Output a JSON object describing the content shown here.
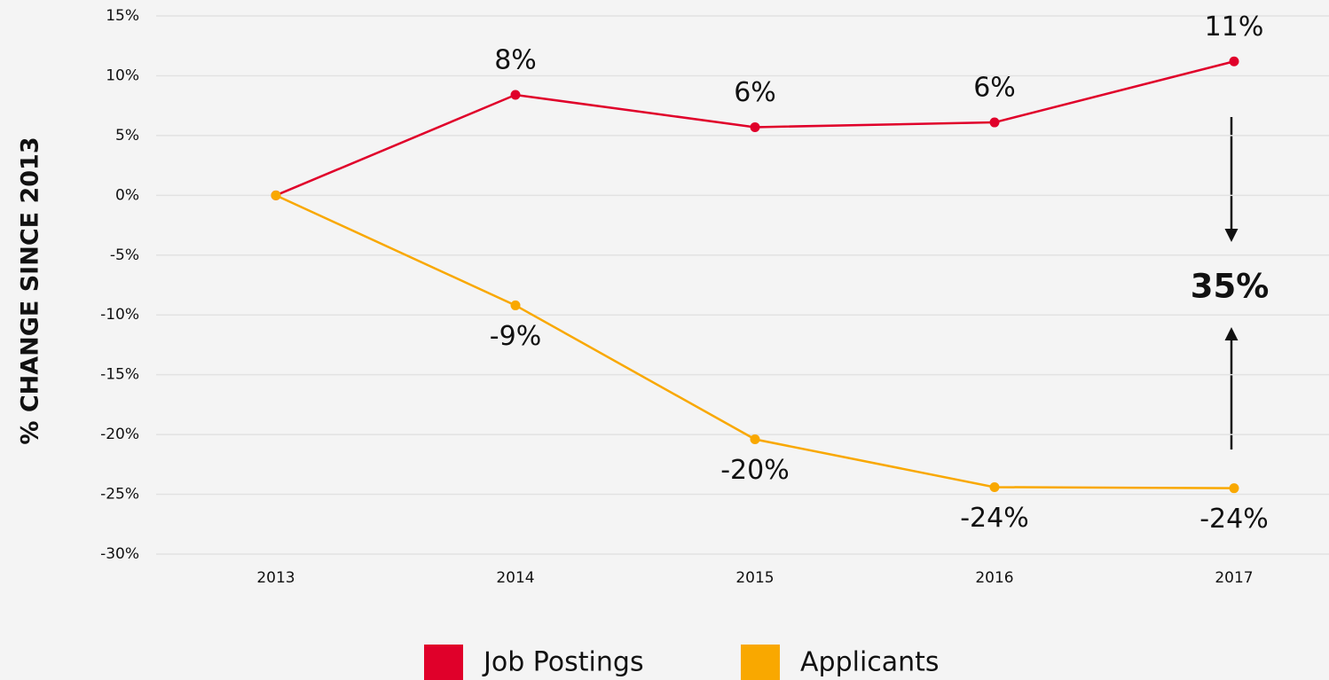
{
  "chart_data": {
    "type": "line",
    "y_label": "% CHANGE SINCE 2013",
    "categories": [
      "2013",
      "2014",
      "2015",
      "2016",
      "2017"
    ],
    "series": [
      {
        "name": "Job Postings",
        "color": "#e0002a",
        "values": [
          0,
          8.4,
          5.7,
          6.1,
          11.2
        ],
        "value_labels": [
          null,
          "8%",
          "6%",
          "6%",
          "11%"
        ]
      },
      {
        "name": "Applicants",
        "color": "#f9a800",
        "values": [
          0,
          -9.2,
          -20.4,
          -24.4,
          -24.49
        ],
        "value_labels": [
          null,
          "-9%",
          "-20%",
          "-24%",
          "-24%"
        ]
      }
    ],
    "annotation": "35%",
    "ylim": [
      -30,
      15
    ],
    "yticks": [
      {
        "value": -30,
        "label": "-30%"
      },
      {
        "value": -25,
        "label": "-25%"
      },
      {
        "value": -20,
        "label": "-20%"
      },
      {
        "value": -15,
        "label": "-15%"
      },
      {
        "value": -10,
        "label": "-10%"
      },
      {
        "value": -5,
        "label": "-5%"
      },
      {
        "value": 0,
        "label": "0%"
      },
      {
        "value": 5,
        "label": "5%"
      },
      {
        "value": 10,
        "label": "10%"
      },
      {
        "value": 15,
        "label": "15%"
      }
    ],
    "grid": true,
    "legend": "bottom"
  }
}
